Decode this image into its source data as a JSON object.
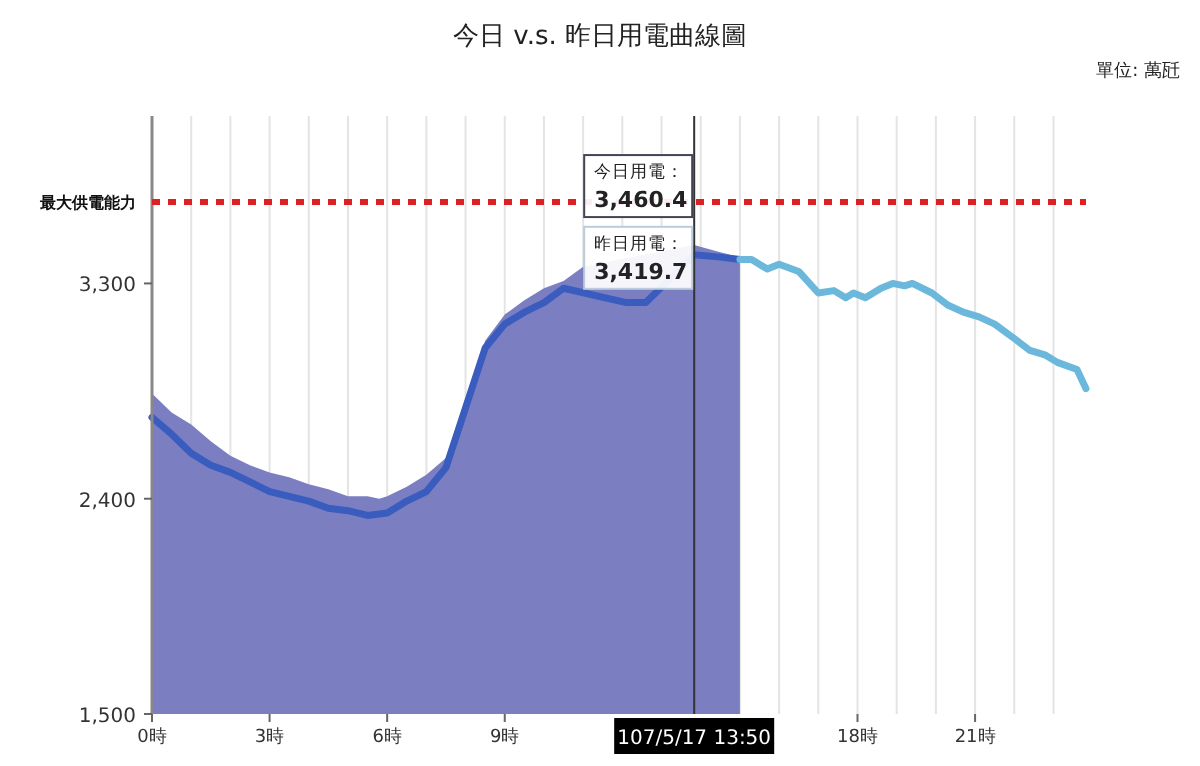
{
  "chart_data": {
    "type": "line",
    "title": "今日 v.s. 昨日用電曲線圖",
    "xlim": [
      0,
      23.83
    ],
    "xticks": [
      {
        "value": 0,
        "label": "0時"
      },
      {
        "value": 1,
        "label": null
      },
      {
        "value": 2,
        "label": null
      },
      {
        "value": 3,
        "label": "3時"
      },
      {
        "value": 4,
        "label": null
      },
      {
        "value": 5,
        "label": null
      },
      {
        "value": 6,
        "label": "6時"
      },
      {
        "value": 7,
        "label": null
      },
      {
        "value": 8,
        "label": null
      },
      {
        "value": 9,
        "label": "9時"
      },
      {
        "value": 10,
        "label": null
      },
      {
        "value": 11,
        "label": null
      },
      {
        "value": 12,
        "label": null
      },
      {
        "value": 13,
        "label": null
      },
      {
        "value": 14,
        "label": null
      },
      {
        "value": 15,
        "label": null
      },
      {
        "value": 16,
        "label": null
      },
      {
        "value": 17,
        "label": null
      },
      {
        "value": 18,
        "label": "18時"
      },
      {
        "value": 19,
        "label": null
      },
      {
        "value": 20,
        "label": null
      },
      {
        "value": 21,
        "label": "21時"
      },
      {
        "value": 22,
        "label": null
      },
      {
        "value": 23,
        "label": null
      }
    ],
    "ylim": [
      1500,
      4000
    ],
    "yticks": [
      {
        "value": 1500,
        "label": "1,500"
      },
      {
        "value": 2400,
        "label": "2,400"
      },
      {
        "value": 3300,
        "label": "3,300"
      }
    ],
    "grid": "x",
    "marker": "none",
    "line_style": "solid",
    "series": [
      {
        "type": "area",
        "color": "#7b7fc2",
        "x": [
          0,
          0.5,
          1,
          1.5,
          2,
          2.5,
          3,
          3.5,
          4,
          4.5,
          5,
          5.5,
          5.8,
          6,
          6.5,
          7,
          7.5,
          8,
          8.5,
          9,
          9.5,
          10,
          10.5,
          11,
          13.8333,
          14.5,
          15
        ],
        "values": [
          2840,
          2760,
          2710,
          2640,
          2580,
          2540,
          2510,
          2490,
          2460,
          2440,
          2410,
          2410,
          2400,
          2410,
          2450,
          2500,
          2570,
          2820,
          3060,
          3170,
          3230,
          3280,
          3310,
          3370,
          3460.4,
          3430,
          3410
        ]
      },
      {
        "color": "#3a5cbf",
        "x": [
          0,
          0.5,
          1,
          1.5,
          2,
          2.5,
          3,
          3.5,
          4,
          4.5,
          5,
          5.5,
          6,
          6.5,
          7,
          7.5,
          8,
          8.5,
          9,
          9.5,
          10,
          10.5,
          12.1,
          12.6,
          13.8333,
          14.5,
          15
        ],
        "values": [
          2740,
          2670,
          2590,
          2540,
          2510,
          2470,
          2430,
          2410,
          2390,
          2360,
          2350,
          2330,
          2340,
          2390,
          2430,
          2530,
          2780,
          3030,
          3130,
          3180,
          3220,
          3280,
          3220,
          3220,
          3419.7,
          3410,
          3400
        ]
      },
      {
        "color": "#6cb8dc",
        "x": [
          15,
          15.3,
          15.7,
          16,
          16.5,
          17,
          17.4,
          17.7,
          17.9,
          18.2,
          18.6,
          18.9,
          19.2,
          19.4,
          19.9,
          20.3,
          20.7,
          21.1,
          21.5,
          22,
          22.4,
          22.8,
          23.1,
          23.6,
          23.83
        ],
        "values": [
          3400,
          3400,
          3360,
          3380,
          3350,
          3260,
          3270,
          3240,
          3260,
          3240,
          3280,
          3300,
          3290,
          3300,
          3260,
          3210,
          3180,
          3160,
          3130,
          3070,
          3020,
          3000,
          2970,
          2940,
          2860
        ]
      }
    ],
    "ref_lines": [
      {
        "axis": "y",
        "value": 3640,
        "label": "最大供電能力",
        "color": "#e02020",
        "line_style": "dotted"
      },
      {
        "axis": "x",
        "value": 13.8333,
        "color": "#333333",
        "line_style": "solid"
      }
    ],
    "annotations": [
      "單位: 萬瓩",
      "107/5/17 13:50",
      {
        "text": "今日用電：\n3,460.4",
        "x": 13.8333,
        "y": 3460.4
      },
      {
        "text": "昨日用電：\n3,419.7",
        "x": 13.8333,
        "y": 3419.7
      }
    ]
  }
}
